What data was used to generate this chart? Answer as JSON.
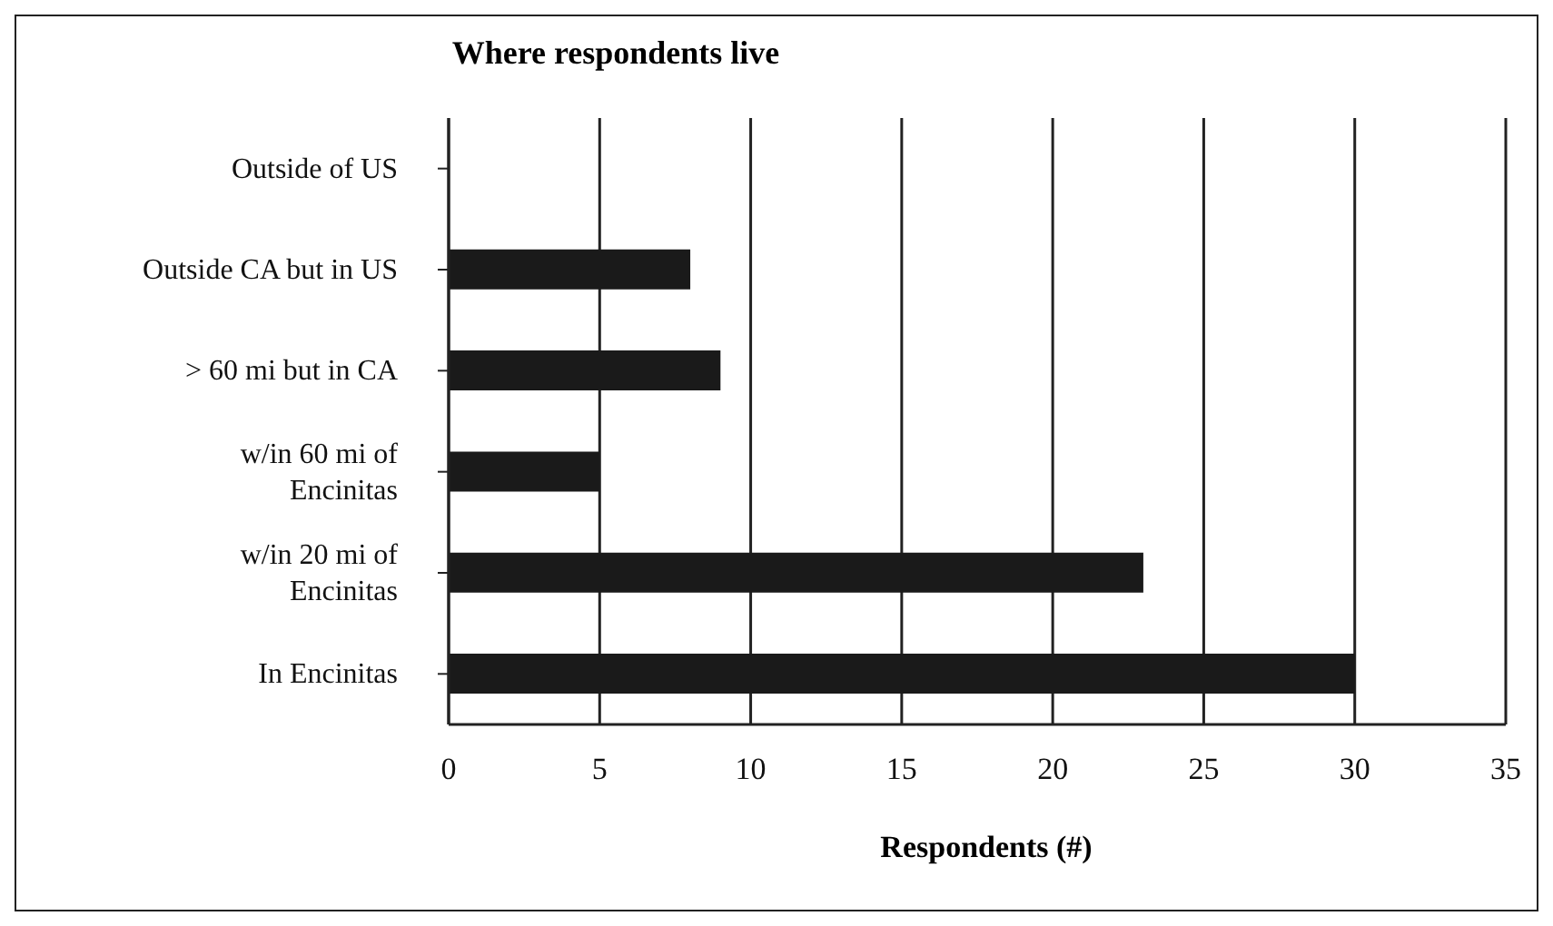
{
  "chart_data": {
    "type": "bar",
    "orientation": "horizontal",
    "title": "Where respondents live",
    "xlabel": "Respondents (#)",
    "categories": [
      "Outside of US",
      "Outside CA but in US",
      "> 60 mi but in CA",
      "w/in 60 mi of Encinitas",
      "w/in 20 mi of Encinitas",
      "In Encinitas"
    ],
    "values": [
      0,
      8,
      9,
      5,
      23,
      30
    ],
    "color": "#1a1a1a",
    "xlim": [
      0,
      35
    ],
    "xticks": [
      0,
      5,
      10,
      15,
      20,
      25,
      30,
      35
    ],
    "grid": "x",
    "legend": false
  }
}
